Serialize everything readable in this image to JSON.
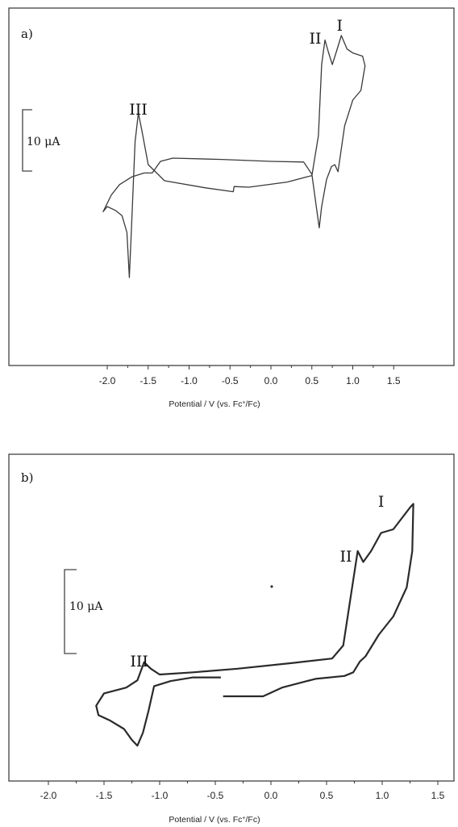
{
  "chart_data": [
    {
      "type": "line",
      "panel_label": "a)",
      "xlabel_main": "Potential / V (",
      "xlabel_ref": "vs. Fc",
      "xlabel_sup": "+",
      "xlabel_tail": "/Fc)",
      "xlim": [
        -2.2,
        1.7
      ],
      "ticks": [
        "-2.0",
        "-1.5",
        "-1.0",
        "-0.5",
        "0.0",
        "0.5",
        "1.0",
        "1.5"
      ],
      "tick_values": [
        -2.0,
        -1.5,
        -1.0,
        -0.5,
        0.0,
        0.5,
        1.0,
        1.5
      ],
      "scale_bar": {
        "label": "10 μA",
        "value_uA": 10
      },
      "annotations": [
        {
          "text": "III",
          "x": -1.62
        },
        {
          "text": "II",
          "x": 0.66
        },
        {
          "text": "I",
          "x": 0.84
        }
      ],
      "series": [
        {
          "values_uA": [
            [
              -0.27,
              0.0
            ],
            [
              -0.45,
              0.1
            ],
            [
              -0.46,
              -0.7
            ],
            [
              -0.8,
              -0.1
            ],
            [
              -1.3,
              1.0
            ],
            [
              -1.5,
              3.5
            ],
            [
              -1.58,
              9.0
            ],
            [
              -1.62,
              11.5
            ],
            [
              -1.66,
              7.0
            ],
            [
              -1.7,
              -5.0
            ],
            [
              -1.73,
              -14.0
            ],
            [
              -1.76,
              -7.0
            ],
            [
              -1.82,
              -4.4
            ],
            [
              -1.9,
              -3.6
            ],
            [
              -2.0,
              -3.0
            ],
            [
              -2.05,
              -3.8
            ],
            [
              -1.95,
              -1.2
            ],
            [
              -1.85,
              0.4
            ],
            [
              -1.7,
              1.6
            ],
            [
              -1.55,
              2.2
            ],
            [
              -1.45,
              2.2
            ],
            [
              -1.35,
              4.0
            ],
            [
              -1.2,
              4.5
            ],
            [
              -0.6,
              4.3
            ],
            [
              0.0,
              4.0
            ],
            [
              0.4,
              3.9
            ],
            [
              0.5,
              2.0
            ],
            [
              0.56,
              -3.5
            ],
            [
              0.59,
              -6.3
            ],
            [
              0.62,
              -3.0
            ],
            [
              0.68,
              1.2
            ],
            [
              0.74,
              3.2
            ],
            [
              0.78,
              3.5
            ],
            [
              0.82,
              2.4
            ],
            [
              0.9,
              9.5
            ],
            [
              1.0,
              13.5
            ],
            [
              1.1,
              15.0
            ],
            [
              1.15,
              18.8
            ],
            [
              1.12,
              20.3
            ],
            [
              1.0,
              20.8
            ],
            [
              0.93,
              21.4
            ],
            [
              0.86,
              23.5
            ],
            [
              0.8,
              21.0
            ],
            [
              0.75,
              19.0
            ],
            [
              0.7,
              21.0
            ],
            [
              0.66,
              22.8
            ],
            [
              0.62,
              19.0
            ],
            [
              0.58,
              8.0
            ],
            [
              0.5,
              1.8
            ],
            [
              0.2,
              0.8
            ],
            [
              -0.27,
              0.0
            ]
          ]
        }
      ]
    },
    {
      "type": "line",
      "panel_label": "b)",
      "xlabel_main": "Potential / V (",
      "xlabel_ref": "vs. Fc",
      "xlabel_sup": "+",
      "xlabel_tail": "/Fc)",
      "xlim": [
        -2.2,
        1.7
      ],
      "ticks": [
        "-2.0",
        "-1.5",
        "-1.0",
        "-0.5",
        "0.0",
        "0.5",
        "1.0",
        "1.5"
      ],
      "tick_values": [
        -2.0,
        -1.5,
        -1.0,
        -0.5,
        0.0,
        0.5,
        1.0,
        1.5
      ],
      "scale_bar": {
        "label": "10 μA",
        "value_uA": 10
      },
      "annotations": [
        {
          "text": "III",
          "x": -1.14
        },
        {
          "text": "II",
          "x": 0.79
        },
        {
          "text": "I",
          "x": 0.99
        }
      ],
      "series": [
        {
          "values_uA": [
            [
              -0.45,
              -0.4
            ],
            [
              -0.7,
              -0.4
            ],
            [
              -0.9,
              -0.9
            ],
            [
              -1.05,
              -1.6
            ],
            [
              -1.1,
              -5.0
            ],
            [
              -1.15,
              -8.0
            ],
            [
              -1.2,
              -9.8
            ],
            [
              -1.25,
              -9.0
            ],
            [
              -1.32,
              -7.5
            ],
            [
              -1.45,
              -6.3
            ],
            [
              -1.55,
              -5.6
            ],
            [
              -1.57,
              -4.3
            ],
            [
              -1.5,
              -2.6
            ],
            [
              -1.3,
              -1.8
            ],
            [
              -1.2,
              -0.8
            ],
            [
              -1.14,
              1.7
            ],
            [
              -1.08,
              0.8
            ],
            [
              -1.0,
              0.0
            ],
            [
              -0.7,
              0.3
            ],
            [
              -0.3,
              0.8
            ],
            [
              0.2,
              1.6
            ],
            [
              0.55,
              2.2
            ],
            [
              0.65,
              4.0
            ],
            [
              0.73,
              12.0
            ],
            [
              0.78,
              17.0
            ],
            [
              0.83,
              15.5
            ],
            [
              0.9,
              17.0
            ],
            [
              0.99,
              19.5
            ],
            [
              1.1,
              20.0
            ],
            [
              1.25,
              23.0
            ],
            [
              1.28,
              23.5
            ],
            [
              1.27,
              17.0
            ],
            [
              1.22,
              12.0
            ],
            [
              1.1,
              8.0
            ],
            [
              0.97,
              5.5
            ],
            [
              0.85,
              2.5
            ],
            [
              0.8,
              1.8
            ],
            [
              0.74,
              0.3
            ],
            [
              0.66,
              -0.2
            ],
            [
              0.4,
              -0.6
            ],
            [
              0.1,
              -1.8
            ],
            [
              -0.07,
              -3.0
            ],
            [
              -0.2,
              -3.0
            ],
            [
              -0.43,
              -3.0
            ]
          ]
        }
      ]
    }
  ]
}
